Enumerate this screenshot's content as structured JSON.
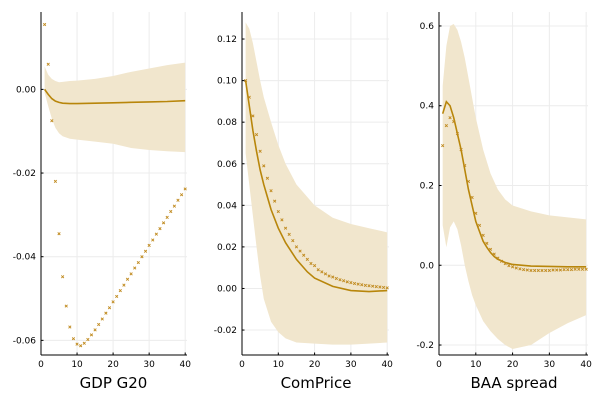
{
  "colors": {
    "line": "#b8860b",
    "marker": "#c08a1e",
    "band": "#f1e6cd",
    "grid": "#ececec",
    "axis": "#000000"
  },
  "chart_data": [
    {
      "type": "line",
      "title": "",
      "xlabel": "GDP G20",
      "ylabel": "",
      "xlim": [
        0,
        40.5
      ],
      "ylim": [
        -0.0635,
        0.0185
      ],
      "xticks": [
        0,
        10,
        20,
        30,
        40
      ],
      "yticks": [
        -0.06,
        -0.04,
        -0.02,
        0.0
      ],
      "ytick_labels": [
        "-0.06",
        "-0.04",
        "-0.02",
        "0.00"
      ],
      "grid": true,
      "series": [
        {
          "role": "line",
          "x": [
            1,
            2,
            3,
            4,
            5,
            6,
            8,
            10,
            15,
            20,
            25,
            30,
            35,
            40
          ],
          "y": [
            0.0,
            -0.0012,
            -0.0022,
            -0.0028,
            -0.0031,
            -0.0033,
            -0.0034,
            -0.0034,
            -0.0033,
            -0.0032,
            -0.0031,
            -0.003,
            -0.0029,
            -0.0027
          ]
        },
        {
          "role": "band_upper",
          "x": [
            1,
            2,
            3,
            4,
            5,
            6,
            8,
            10,
            15,
            20,
            25,
            30,
            35,
            40
          ],
          "y": [
            0.0055,
            0.0035,
            0.0025,
            0.002,
            0.0017,
            0.0018,
            0.002,
            0.0021,
            0.0025,
            0.0032,
            0.0042,
            0.005,
            0.0058,
            0.0064
          ]
        },
        {
          "role": "band_lower",
          "x": [
            1,
            2,
            3,
            4,
            5,
            6,
            8,
            10,
            15,
            20,
            25,
            30,
            35,
            40
          ],
          "y": [
            -0.0008,
            -0.004,
            -0.007,
            -0.0092,
            -0.0105,
            -0.0112,
            -0.0118,
            -0.012,
            -0.0125,
            -0.013,
            -0.014,
            -0.0145,
            -0.0148,
            -0.015
          ]
        },
        {
          "role": "markers",
          "x": [
            1,
            2,
            3,
            4,
            5,
            6,
            7,
            8,
            9,
            10,
            11,
            12,
            13,
            14,
            15,
            16,
            17,
            18,
            19,
            20,
            21,
            22,
            23,
            24,
            25,
            26,
            27,
            28,
            29,
            30,
            31,
            32,
            33,
            34,
            35,
            36,
            37,
            38,
            39,
            40
          ],
          "y": [
            0.0155,
            0.006,
            -0.0075,
            -0.022,
            -0.0345,
            -0.0448,
            -0.0518,
            -0.0568,
            -0.0596,
            -0.0609,
            -0.0613,
            -0.0607,
            -0.0598,
            -0.0587,
            -0.0575,
            -0.0562,
            -0.0549,
            -0.0535,
            -0.0522,
            -0.0508,
            -0.0495,
            -0.0481,
            -0.0468,
            -0.0454,
            -0.0441,
            -0.0427,
            -0.0414,
            -0.04,
            -0.0387,
            -0.0373,
            -0.036,
            -0.0346,
            -0.0333,
            -0.0319,
            -0.0306,
            -0.0292,
            -0.0279,
            -0.0265,
            -0.0252,
            -0.0238
          ]
        }
      ]
    },
    {
      "type": "line",
      "title": "",
      "xlabel": "ComPrice",
      "ylabel": "",
      "xlim": [
        0,
        40.5
      ],
      "ylim": [
        -0.032,
        0.133
      ],
      "xticks": [
        0,
        10,
        20,
        30,
        40
      ],
      "yticks": [
        -0.02,
        0.0,
        0.02,
        0.04,
        0.06,
        0.08,
        0.1,
        0.12
      ],
      "ytick_labels": [
        "-0.02",
        "0.00",
        "0.02",
        "0.04",
        "0.06",
        "0.08",
        "0.10",
        "0.12"
      ],
      "grid": true,
      "series": [
        {
          "role": "line",
          "x": [
            1,
            2,
            3,
            4,
            5,
            6,
            7,
            8,
            10,
            12,
            15,
            18,
            20,
            25,
            30,
            35,
            40
          ],
          "y": [
            0.1,
            0.088,
            0.076,
            0.066,
            0.057,
            0.05,
            0.044,
            0.038,
            0.029,
            0.022,
            0.014,
            0.008,
            0.005,
            0.001,
            -0.001,
            -0.0015,
            -0.001
          ]
        },
        {
          "role": "band_upper",
          "x": [
            1,
            2,
            3,
            4,
            5,
            6,
            8,
            10,
            12,
            15,
            20,
            25,
            30,
            35,
            40
          ],
          "y": [
            0.128,
            0.125,
            0.118,
            0.109,
            0.1,
            0.092,
            0.08,
            0.069,
            0.06,
            0.05,
            0.04,
            0.034,
            0.031,
            0.029,
            0.027
          ]
        },
        {
          "role": "band_lower",
          "x": [
            1,
            2,
            3,
            4,
            5,
            6,
            8,
            10,
            12,
            15,
            20,
            25,
            30,
            35,
            40
          ],
          "y": [
            0.065,
            0.05,
            0.035,
            0.02,
            0.006,
            -0.005,
            -0.016,
            -0.021,
            -0.024,
            -0.026,
            -0.0265,
            -0.027,
            -0.027,
            -0.0265,
            -0.026
          ]
        },
        {
          "role": "markers",
          "x": [
            1,
            2,
            3,
            4,
            5,
            6,
            7,
            8,
            9,
            10,
            11,
            12,
            13,
            14,
            15,
            16,
            17,
            18,
            19,
            20,
            21,
            22,
            23,
            24,
            25,
            26,
            27,
            28,
            29,
            30,
            31,
            32,
            33,
            34,
            35,
            36,
            37,
            38,
            39,
            40
          ],
          "y": [
            0.1,
            0.092,
            0.083,
            0.074,
            0.066,
            0.059,
            0.053,
            0.047,
            0.042,
            0.037,
            0.033,
            0.029,
            0.026,
            0.023,
            0.02,
            0.018,
            0.016,
            0.014,
            0.012,
            0.011,
            0.009,
            0.008,
            0.007,
            0.006,
            0.0055,
            0.0048,
            0.0042,
            0.0037,
            0.0032,
            0.0028,
            0.0024,
            0.0021,
            0.0018,
            0.0015,
            0.0013,
            0.0011,
            0.0009,
            0.0007,
            0.0005,
            0.0003
          ]
        }
      ]
    },
    {
      "type": "line",
      "title": "",
      "xlabel": "BAA spread",
      "ylabel": "",
      "xlim": [
        0,
        40.5
      ],
      "ylim": [
        -0.225,
        0.635
      ],
      "xticks": [
        0,
        10,
        20,
        30,
        40
      ],
      "yticks": [
        -0.2,
        0.0,
        0.2,
        0.4,
        0.6
      ],
      "ytick_labels": [
        "-0.2",
        "0.0",
        "0.2",
        "0.4",
        "0.6"
      ],
      "grid": true,
      "series": [
        {
          "role": "line",
          "x": [
            1,
            2,
            3,
            4,
            5,
            6,
            7,
            8,
            9,
            10,
            11,
            12,
            13,
            14,
            15,
            16,
            18,
            20,
            25,
            30,
            35,
            40
          ],
          "y": [
            0.38,
            0.41,
            0.4,
            0.37,
            0.33,
            0.29,
            0.24,
            0.19,
            0.15,
            0.11,
            0.085,
            0.06,
            0.045,
            0.032,
            0.022,
            0.015,
            0.007,
            0.002,
            -0.002,
            -0.003,
            -0.004,
            -0.004
          ]
        },
        {
          "role": "band_upper",
          "x": [
            1,
            2,
            3,
            4,
            5,
            6,
            7,
            8,
            9,
            10,
            12,
            14,
            16,
            18,
            20,
            25,
            30,
            35,
            40
          ],
          "y": [
            0.45,
            0.55,
            0.6,
            0.605,
            0.59,
            0.56,
            0.52,
            0.47,
            0.42,
            0.37,
            0.29,
            0.23,
            0.19,
            0.165,
            0.15,
            0.135,
            0.125,
            0.12,
            0.115
          ]
        },
        {
          "role": "band_lower",
          "x": [
            1,
            2,
            3,
            4,
            5,
            6,
            7,
            8,
            9,
            10,
            12,
            14,
            16,
            18,
            20,
            25,
            30,
            35,
            40
          ],
          "y": [
            0.1,
            0.045,
            0.095,
            0.11,
            0.09,
            0.05,
            0.0,
            -0.04,
            -0.075,
            -0.1,
            -0.14,
            -0.165,
            -0.185,
            -0.2,
            -0.21,
            -0.2,
            -0.17,
            -0.145,
            -0.125
          ]
        },
        {
          "role": "markers",
          "x": [
            1,
            2,
            3,
            4,
            5,
            6,
            7,
            8,
            9,
            10,
            11,
            12,
            13,
            14,
            15,
            16,
            17,
            18,
            19,
            20,
            21,
            22,
            23,
            24,
            25,
            26,
            27,
            28,
            29,
            30,
            31,
            32,
            33,
            34,
            35,
            36,
            37,
            38,
            39,
            40
          ],
          "y": [
            0.3,
            0.35,
            0.37,
            0.36,
            0.33,
            0.29,
            0.25,
            0.21,
            0.17,
            0.13,
            0.1,
            0.075,
            0.055,
            0.04,
            0.028,
            0.018,
            0.01,
            0.004,
            -0.001,
            -0.004,
            -0.007,
            -0.009,
            -0.011,
            -0.012,
            -0.013,
            -0.013,
            -0.013,
            -0.013,
            -0.013,
            -0.013,
            -0.012,
            -0.012,
            -0.012,
            -0.011,
            -0.011,
            -0.011,
            -0.01,
            -0.01,
            -0.01,
            -0.01
          ]
        }
      ]
    }
  ]
}
